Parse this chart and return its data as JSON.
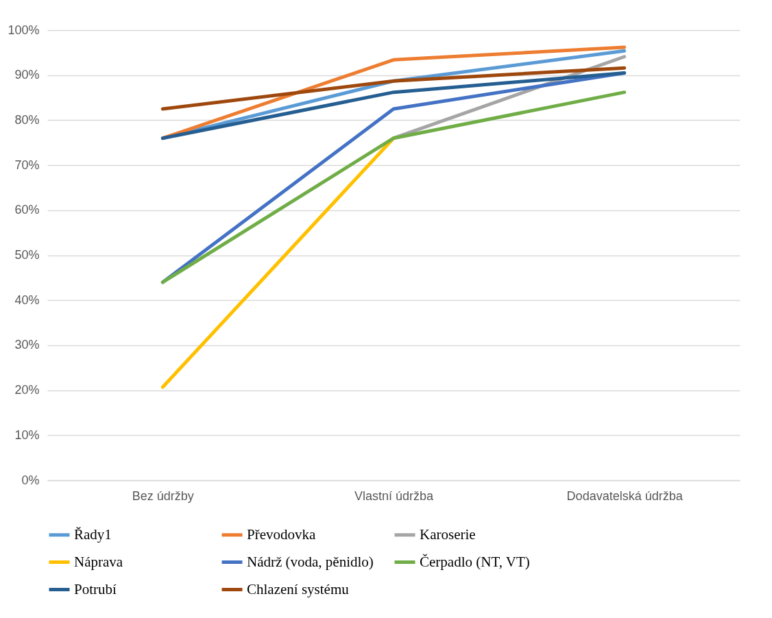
{
  "chart_data": {
    "type": "line",
    "categories": [
      "Bez údržby",
      "Vlastní údržba",
      "Dodavatelská údržba"
    ],
    "series": [
      {
        "name": "Řady1",
        "color": "#5b9bd5",
        "values": [
          76,
          88.7,
          95.4
        ]
      },
      {
        "name": "Převodovka",
        "color": "#ed7d31",
        "values": [
          76,
          93.4,
          96.2
        ]
      },
      {
        "name": "Karoserie",
        "color": "#a5a5a5",
        "values": [
          null,
          76,
          94.1
        ]
      },
      {
        "name": "Náprava",
        "color": "#ffc000",
        "values": [
          20.7,
          76,
          null
        ]
      },
      {
        "name": "Nádrž (voda, pěnidlo)",
        "color": "#4472c4",
        "values": [
          44,
          82.5,
          90.5
        ]
      },
      {
        "name": "Čerpadlo (NT, VT)",
        "color": "#70ad47",
        "values": [
          44,
          76,
          86.2
        ]
      },
      {
        "name": "Potrubí",
        "color": "#255e91",
        "values": [
          76,
          86.2,
          90.5
        ]
      },
      {
        "name": "Chlazení systému",
        "color": "#9e480e",
        "values": [
          82.5,
          88.7,
          91.6
        ]
      }
    ],
    "ylim": [
      0,
      100
    ],
    "yticks": [
      {
        "value": 0,
        "label": "0%"
      },
      {
        "value": 10,
        "label": "10%"
      },
      {
        "value": 20,
        "label": "20%"
      },
      {
        "value": 30,
        "label": "30%"
      },
      {
        "value": 40,
        "label": "40%"
      },
      {
        "value": 50,
        "label": "50%"
      },
      {
        "value": 60,
        "label": "60%"
      },
      {
        "value": 70,
        "label": "70%"
      },
      {
        "value": 80,
        "label": "80%"
      },
      {
        "value": 90,
        "label": "90%"
      },
      {
        "value": 100,
        "label": "100%"
      }
    ],
    "grid": "y",
    "legend": "bottom",
    "marker": "none",
    "line_style": "solid"
  }
}
